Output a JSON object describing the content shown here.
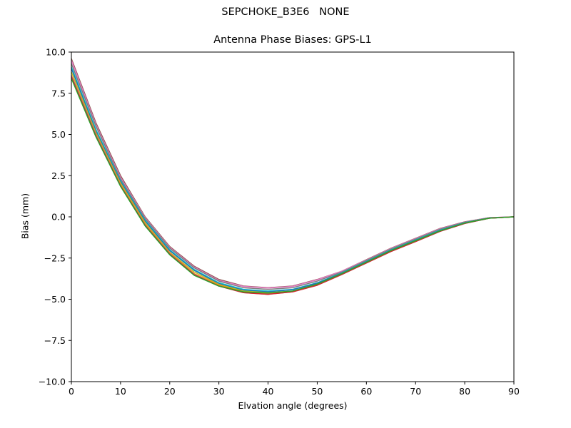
{
  "figure": {
    "suptitle": "SEPCHOKE_B3E6   NONE"
  },
  "chart_data": {
    "type": "line",
    "title": "Antenna Phase Biases: GPS-L1",
    "xlabel": "Elvation angle (degrees)",
    "ylabel": "Bias (mm)",
    "xlim": [
      0,
      90
    ],
    "ylim": [
      -10,
      10
    ],
    "xticks": [
      0,
      10,
      20,
      30,
      40,
      50,
      60,
      70,
      80,
      90
    ],
    "xtick_labels": [
      "0",
      "10",
      "20",
      "30",
      "40",
      "50",
      "60",
      "70",
      "80",
      "90"
    ],
    "yticks": [
      10,
      7.5,
      5,
      2.5,
      0,
      -2.5,
      -5,
      -7.5,
      -10
    ],
    "ytick_labels": [
      "10.0",
      "7.5",
      "5.0",
      "2.5",
      "0.0",
      "−2.5",
      "−5.0",
      "−7.5",
      "−10.0"
    ],
    "grid": false,
    "x": [
      0,
      5,
      10,
      15,
      20,
      25,
      30,
      35,
      40,
      45,
      50,
      55,
      60,
      65,
      70,
      75,
      80,
      85,
      90
    ],
    "series": [
      {
        "color": "#8c564b",
        "values": [
          9.6,
          5.7,
          2.5,
          0.0,
          -1.8,
          -3.0,
          -3.8,
          -4.2,
          -4.3,
          -4.2,
          -3.8,
          -3.3,
          -2.6,
          -1.9,
          -1.3,
          -0.7,
          -0.3,
          -0.05,
          0.0
        ]
      },
      {
        "color": "#e377c2",
        "values": [
          9.5,
          5.6,
          2.4,
          -0.05,
          -1.85,
          -3.05,
          -3.85,
          -4.22,
          -4.32,
          -4.22,
          -3.82,
          -3.3,
          -2.62,
          -1.92,
          -1.32,
          -0.72,
          -0.32,
          -0.05,
          0.0
        ]
      },
      {
        "color": "#7f7f7f",
        "values": [
          9.3,
          5.5,
          2.3,
          -0.1,
          -1.9,
          -3.1,
          -3.9,
          -4.3,
          -4.4,
          -4.3,
          -3.9,
          -3.35,
          -2.65,
          -1.95,
          -1.35,
          -0.75,
          -0.33,
          -0.06,
          0.0
        ]
      },
      {
        "color": "#17becf",
        "values": [
          9.1,
          5.3,
          2.2,
          -0.2,
          -2.0,
          -3.2,
          -4.0,
          -4.4,
          -4.5,
          -4.4,
          -4.0,
          -3.4,
          -2.7,
          -2.0,
          -1.4,
          -0.8,
          -0.35,
          -0.07,
          0.0
        ]
      },
      {
        "color": "#1f77b4",
        "values": [
          9.0,
          5.2,
          2.15,
          -0.25,
          -2.05,
          -3.25,
          -4.05,
          -4.45,
          -4.55,
          -4.42,
          -4.02,
          -3.42,
          -2.72,
          -2.02,
          -1.42,
          -0.82,
          -0.36,
          -0.07,
          0.0
        ]
      },
      {
        "color": "#bcbd22",
        "values": [
          8.8,
          5.1,
          2.05,
          -0.35,
          -2.15,
          -3.35,
          -4.1,
          -4.5,
          -4.6,
          -4.5,
          -4.1,
          -3.45,
          -2.75,
          -2.05,
          -1.45,
          -0.85,
          -0.38,
          -0.08,
          0.0
        ]
      },
      {
        "color": "#ff7f0e",
        "values": [
          8.6,
          5.0,
          1.95,
          -0.45,
          -2.2,
          -3.45,
          -4.15,
          -4.55,
          -4.65,
          -4.52,
          -4.12,
          -3.48,
          -2.78,
          -2.08,
          -1.48,
          -0.86,
          -0.39,
          -0.08,
          0.0
        ]
      },
      {
        "color": "#9467bd",
        "values": [
          8.55,
          4.95,
          1.9,
          -0.5,
          -2.25,
          -3.5,
          -4.2,
          -4.6,
          -4.7,
          -4.55,
          -4.15,
          -3.5,
          -2.8,
          -2.1,
          -1.5,
          -0.88,
          -0.4,
          -0.08,
          0.0
        ]
      },
      {
        "color": "#d62728",
        "values": [
          8.5,
          4.9,
          1.88,
          -0.52,
          -2.27,
          -3.52,
          -4.2,
          -4.6,
          -4.7,
          -4.55,
          -4.15,
          -3.5,
          -2.8,
          -2.1,
          -1.5,
          -0.88,
          -0.4,
          -0.08,
          0.0
        ]
      },
      {
        "color": "#2ca02c",
        "values": [
          8.4,
          4.85,
          1.85,
          -0.55,
          -2.3,
          -3.55,
          -4.2,
          -4.55,
          -4.62,
          -4.5,
          -4.08,
          -3.45,
          -2.75,
          -2.05,
          -1.45,
          -0.85,
          -0.38,
          -0.08,
          0.0
        ]
      }
    ]
  }
}
